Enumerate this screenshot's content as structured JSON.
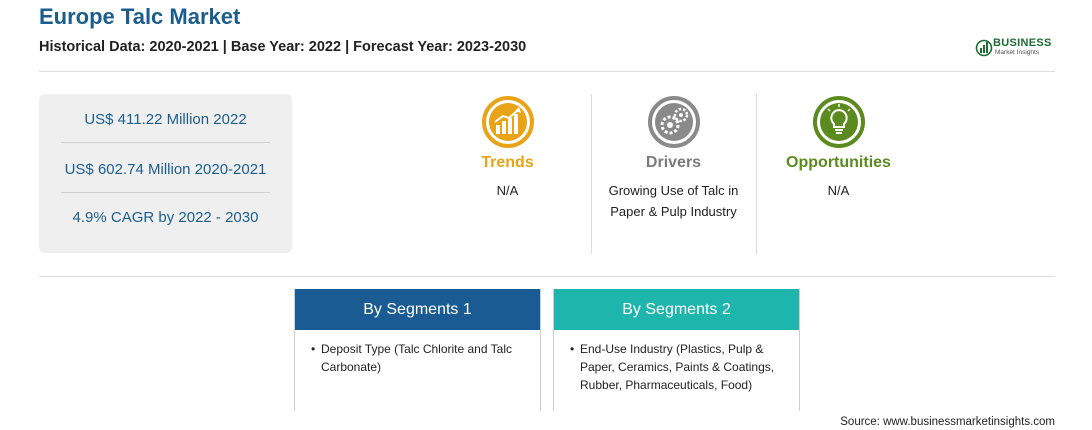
{
  "header": {
    "title": "Europe Talc Market",
    "subtitle": "Historical Data: 2020-2021 | Base Year: 2022 | Forecast Year: 2023-2030"
  },
  "logo": {
    "name": "BUSINESS",
    "tagline": "Market Insights",
    "color": "#1d6c33"
  },
  "stats": [
    "US$ 411.22 Million 2022",
    "US$ 602.74 Million 2020-2021",
    "4.9% CAGR by 2022 - 2030"
  ],
  "columns": [
    {
      "icon": "trend-chart-icon",
      "title": "Trends",
      "text": "N/A",
      "color": "#e8a317"
    },
    {
      "icon": "gears-icon",
      "title": "Drivers",
      "text": "Growing Use of Talc in Paper & Pulp Industry",
      "color": "#7b7b7b"
    },
    {
      "icon": "lightbulb-icon",
      "title": "Opportunities",
      "text": "N/A",
      "color": "#5b8a1e"
    }
  ],
  "segments": [
    {
      "title": "By Segments 1",
      "color": "#1a5b93",
      "item": "Deposit Type (Talc Chlorite and Talc Carbonate)"
    },
    {
      "title": "By Segments 2",
      "color": "#1eb5ad",
      "item": "End-Use Industry (Plastics, Pulp & Paper, Ceramics, Paints & Coatings, Rubber, Pharmaceuticals, Food)"
    }
  ],
  "source": "Source: www.businessmarketinsights.com"
}
